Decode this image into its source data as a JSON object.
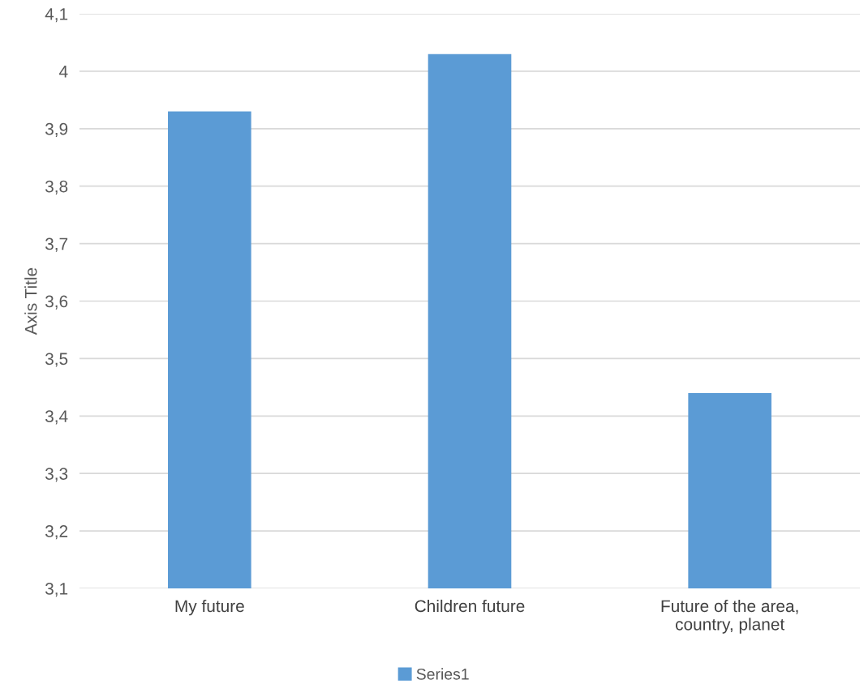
{
  "chart_data": {
    "type": "bar",
    "ylabel": "Axis Title",
    "categories": [
      "My future",
      "Children future",
      "Future of the area,\ncountry, planet"
    ],
    "series": [
      {
        "name": "Series1",
        "color": "#5b9bd5",
        "values": [
          3.93,
          4.03,
          3.44
        ]
      }
    ],
    "ylim": [
      3.1,
      4.1
    ],
    "yticks": [
      {
        "value": 3.1,
        "label": "3,1"
      },
      {
        "value": 3.2,
        "label": "3,2"
      },
      {
        "value": 3.3,
        "label": "3,3"
      },
      {
        "value": 3.4,
        "label": "3,4"
      },
      {
        "value": 3.5,
        "label": "3,5"
      },
      {
        "value": 3.6,
        "label": "3,6"
      },
      {
        "value": 3.7,
        "label": "3,7"
      },
      {
        "value": 3.8,
        "label": "3,8"
      },
      {
        "value": 3.9,
        "label": "3,9"
      },
      {
        "value": 4.0,
        "label": "4"
      },
      {
        "value": 4.1,
        "label": "4,1"
      }
    ],
    "grid": "y",
    "legend": "bottom"
  }
}
